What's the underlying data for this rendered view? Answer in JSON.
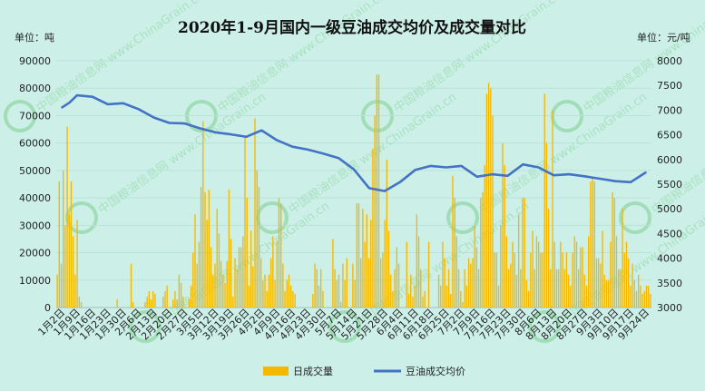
{
  "chart_data": {
    "type": "bar+line",
    "title": "2020年1-9月国内一级豆油成交均价及成交量对比",
    "y_left_unit": "单位：吨",
    "y_right_unit": "单位：元/吨",
    "y_left_ticks": [
      "0",
      "10000",
      "20000",
      "30000",
      "40000",
      "50000",
      "60000",
      "70000",
      "80000",
      "90000"
    ],
    "y_right_ticks": [
      "3000",
      "3500",
      "4000",
      "4500",
      "5000",
      "5500",
      "6000",
      "6500",
      "7000",
      "7500",
      "8000"
    ],
    "ylim_left": [
      0,
      90000
    ],
    "ylim_right": [
      3000,
      8000
    ],
    "x_tick_labels": [
      "1月2日",
      "1月9日",
      "1月16日",
      "1月23日",
      "1月30日",
      "2月6日",
      "2月13日",
      "2月20日",
      "2月27日",
      "3月5日",
      "3月12日",
      "3月19日",
      "3月26日",
      "4月2日",
      "4月9日",
      "4月16日",
      "4月23日",
      "4月30日",
      "5月7日",
      "5月14日",
      "5月21日",
      "5月28日",
      "6月4日",
      "6月11日",
      "6月18日",
      "6月25日",
      "7月2日",
      "7月9日",
      "7月16日",
      "7月23日",
      "7月30日",
      "8月6日",
      "8月13日",
      "8月20日",
      "8月27日",
      "9月3日",
      "9月10日",
      "9月17日",
      "9月24日"
    ],
    "grid": true,
    "legend_position": "bottom",
    "series": [
      {
        "name": "日成交量",
        "type": "bar",
        "axis": "left",
        "color": "#f5b800",
        "values": [
          12000,
          46000,
          16000,
          50000,
          30000,
          66000,
          34000,
          46000,
          26000,
          12000,
          32000,
          4000,
          2000,
          0,
          0,
          0,
          0,
          0,
          0,
          0,
          0,
          0,
          0,
          0,
          0,
          0,
          0,
          0,
          0,
          0,
          3000,
          0,
          0,
          0,
          0,
          0,
          0,
          16000,
          2000,
          0,
          0,
          0,
          0,
          0,
          2000,
          4000,
          6000,
          3000,
          6000,
          5000,
          0,
          0,
          0,
          4000,
          6000,
          8000,
          0,
          0,
          3000,
          6000,
          3000,
          12000,
          9000,
          4000,
          0,
          0,
          3000,
          8000,
          20000,
          34000,
          16000,
          24000,
          44000,
          68000,
          42000,
          32000,
          43000,
          22000,
          12000,
          16000,
          36000,
          27000,
          17000,
          12000,
          9000,
          17000,
          43000,
          25000,
          4000,
          18000,
          14000,
          22000,
          22000,
          26000,
          62000,
          40000,
          8000,
          28000,
          15000,
          69000,
          50000,
          44000,
          18000,
          10000,
          12000,
          6000,
          12000,
          18000,
          26000,
          10000,
          24000,
          40000,
          38000,
          16000,
          6000,
          10000,
          12000,
          8000,
          6000,
          5000,
          0,
          0,
          0,
          0,
          0,
          0,
          0,
          0,
          5000,
          16000,
          14000,
          8000,
          14000,
          6000,
          0,
          0,
          0,
          0,
          25000,
          14000,
          10000,
          12000,
          2000,
          16000,
          10000,
          18000,
          0,
          0,
          16000,
          10000,
          38000,
          38000,
          18000,
          36000,
          24000,
          34000,
          18000,
          32000,
          58000,
          70000,
          85000,
          85000,
          18000,
          20000,
          32000,
          54000,
          28000,
          12000,
          6000,
          14000,
          22000,
          16000,
          0,
          0,
          0,
          24000,
          5000,
          12000,
          4000,
          8000,
          34000,
          26000,
          14000,
          4000,
          6000,
          0,
          24000,
          0,
          0,
          0,
          0,
          12000,
          8000,
          24000,
          18000,
          8000,
          14000,
          5000,
          48000,
          40000,
          26000,
          14000,
          6000,
          2000,
          14000,
          8000,
          18000,
          16000,
          18000,
          30000,
          22000,
          14000,
          40000,
          42000,
          52000,
          78000,
          82000,
          80000,
          70000,
          20000,
          20000,
          8000,
          30000,
          60000,
          52000,
          26000,
          14000,
          16000,
          24000,
          20000,
          12000,
          34000,
          14000,
          40000,
          40000,
          10000,
          6000,
          20000,
          28000,
          14000,
          26000,
          24000,
          20000,
          20000,
          78000,
          60000,
          36000,
          14000,
          72000,
          24000,
          14000,
          14000,
          24000,
          20000,
          14000,
          20000,
          12000,
          8000,
          20000,
          26000,
          24000,
          14000,
          22000,
          22000,
          12000,
          8000,
          26000,
          46000,
          47000,
          46000,
          18000,
          18000,
          16000,
          28000,
          12000,
          10000,
          10000,
          24000,
          42000,
          40000,
          26000,
          14000,
          14000,
          36000,
          20000,
          24000,
          18000,
          8000,
          16000,
          10000,
          6000,
          12000,
          8000,
          5000,
          6000,
          8000,
          8000,
          5000
        ]
      },
      {
        "name": "豆油成交均价",
        "type": "line",
        "axis": "right",
        "color": "#4472c4",
        "x_positions": [
          0,
          0.5,
          1,
          2,
          3,
          4,
          5,
          6,
          7,
          8,
          9,
          10,
          11,
          12,
          13,
          14,
          15,
          16,
          17,
          18,
          19,
          20,
          21,
          22,
          23,
          24,
          25,
          26,
          27,
          28,
          29,
          30,
          31,
          32,
          33,
          34,
          35,
          36,
          37,
          38
        ],
        "values": [
          7050,
          7150,
          7300,
          7270,
          7120,
          7140,
          7020,
          6850,
          6740,
          6730,
          6630,
          6550,
          6510,
          6460,
          6590,
          6390,
          6260,
          6200,
          6120,
          6030,
          5800,
          5420,
          5360,
          5540,
          5790,
          5870,
          5840,
          5870,
          5650,
          5700,
          5670,
          5900,
          5840,
          5680,
          5700,
          5660,
          5610,
          5560,
          5540,
          5740
        ]
      }
    ],
    "legend_entries": [
      "日成交量",
      "豆油成交均价"
    ],
    "watermark": "中国粮油信息网 www.ChinaGrain.cn"
  }
}
